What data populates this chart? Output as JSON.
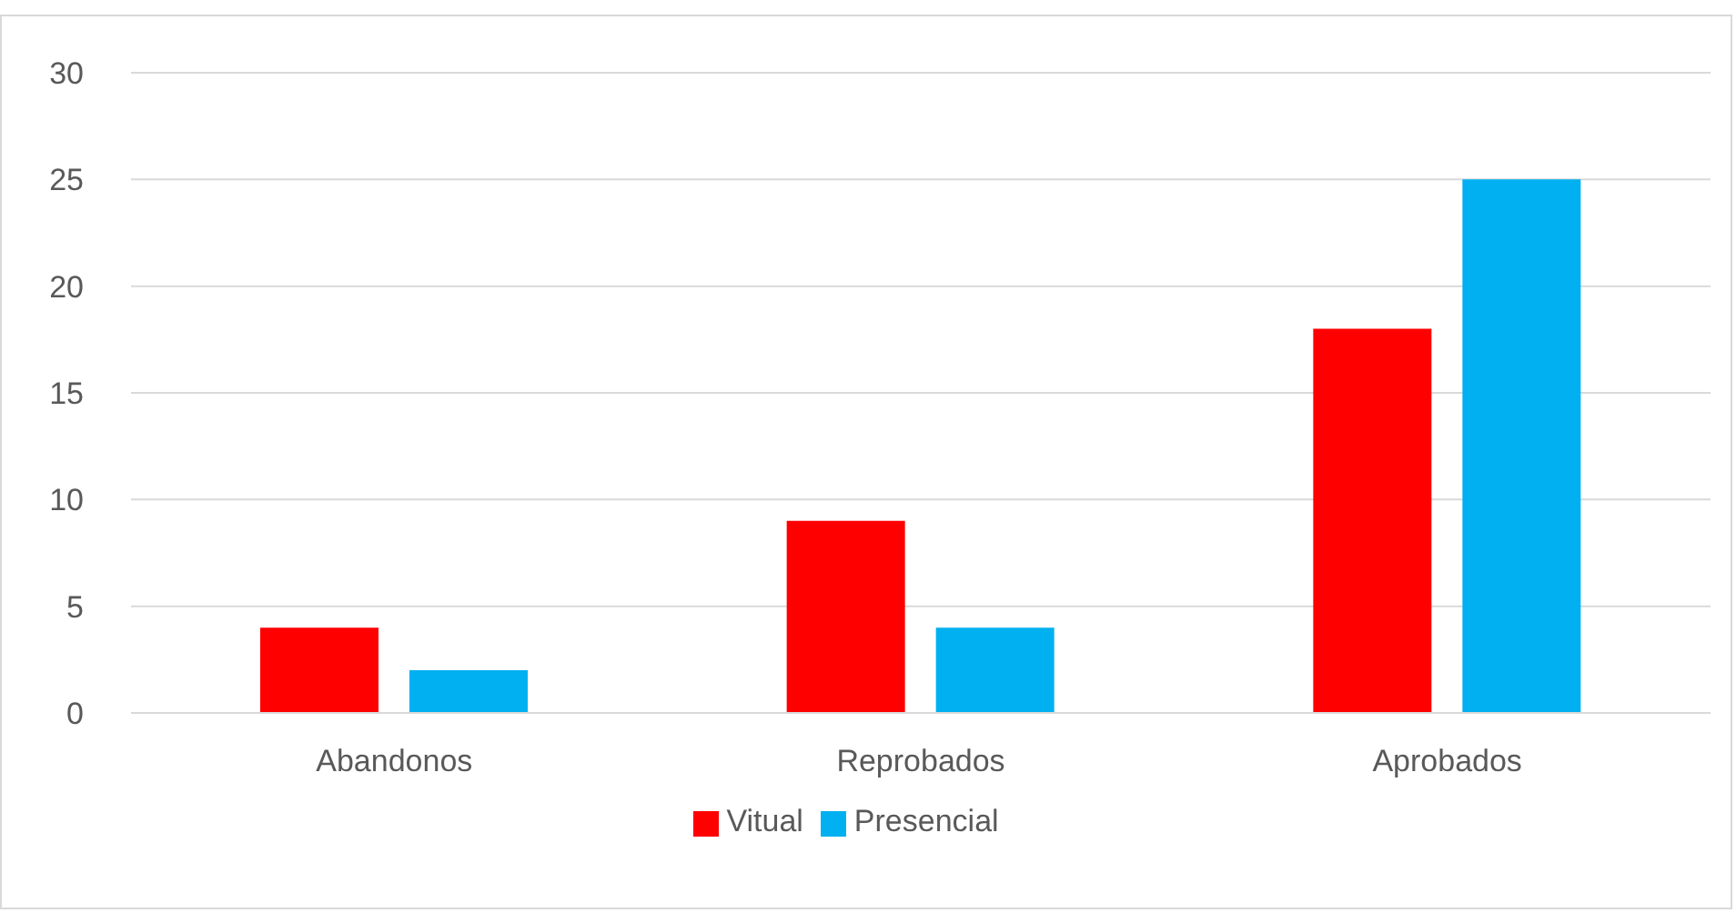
{
  "chart_data": {
    "type": "bar",
    "categories": [
      "Abandonos",
      "Reprobados",
      "Aprobados"
    ],
    "series": [
      {
        "name": "Vitual",
        "color": "#ff0000",
        "values": [
          4,
          9,
          18
        ]
      },
      {
        "name": "Presencial",
        "color": "#00b0f0",
        "values": [
          2,
          4,
          25
        ]
      }
    ],
    "ylim": [
      0,
      30
    ],
    "yticks": [
      0,
      5,
      10,
      15,
      20,
      25,
      30
    ],
    "grid": "y",
    "legend": "bottom"
  }
}
